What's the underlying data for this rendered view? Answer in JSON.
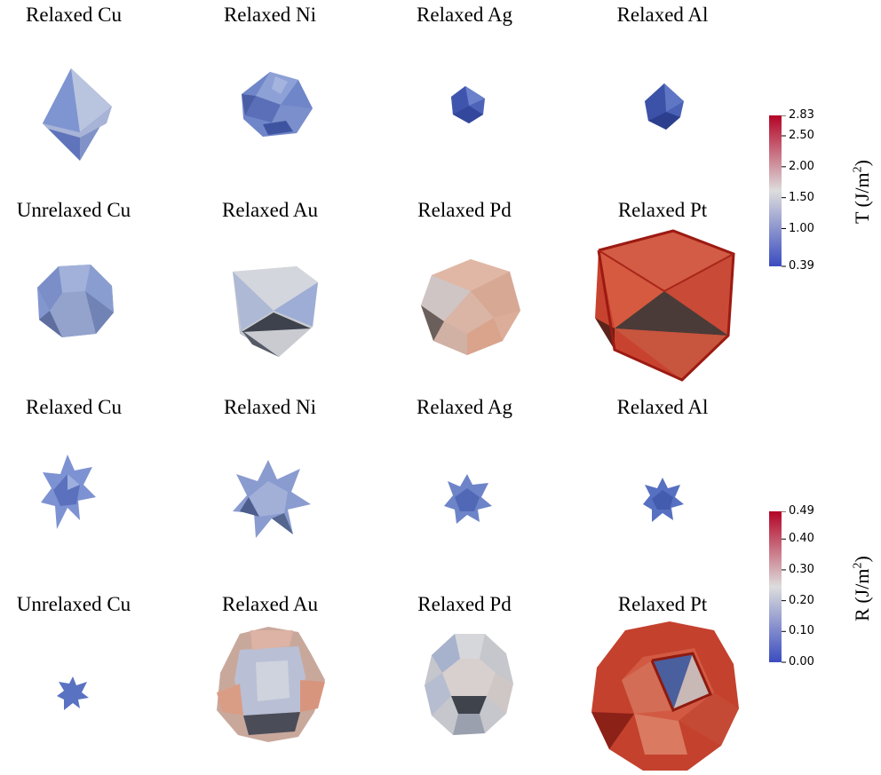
{
  "panels": [
    {
      "label": "Relaxed Cu"
    },
    {
      "label": "Relaxed Ni"
    },
    {
      "label": "Relaxed Ag"
    },
    {
      "label": "Relaxed Al"
    },
    {
      "label": "Unrelaxed Cu"
    },
    {
      "label": "Relaxed Au"
    },
    {
      "label": "Relaxed Pd"
    },
    {
      "label": "Relaxed Pt"
    },
    {
      "label": "Relaxed Cu"
    },
    {
      "label": "Relaxed Ni"
    },
    {
      "label": "Relaxed Ag"
    },
    {
      "label": "Relaxed Al"
    },
    {
      "label": "Unrelaxed Cu"
    },
    {
      "label": "Relaxed Au"
    },
    {
      "label": "Relaxed Pd"
    },
    {
      "label": "Relaxed Pt"
    }
  ],
  "colorbar_t": {
    "title_main": "T (J/m",
    "title_sup": "2",
    "title_end": ")",
    "min": 0.39,
    "max": 2.83,
    "ticks": [
      "2.83",
      "2.50",
      "2.00",
      "1.50",
      "1.00",
      "0.39"
    ],
    "tick_values": [
      2.83,
      2.5,
      2.0,
      1.5,
      1.0,
      0.39
    ],
    "colors": {
      "low": "#3b4cc0",
      "mid": "#dddddd",
      "high": "#b40426"
    }
  },
  "colorbar_r": {
    "title_main": "R (J/m",
    "title_sup": "2",
    "title_end": ")",
    "min": 0.0,
    "max": 0.49,
    "ticks": [
      "0.49",
      "0.40",
      "0.30",
      "0.20",
      "0.10",
      "0.00"
    ],
    "tick_values": [
      0.49,
      0.4,
      0.3,
      0.2,
      0.1,
      0.0
    ],
    "colors": {
      "low": "#3b4cc0",
      "mid": "#dddddd",
      "high": "#b40426"
    }
  }
}
